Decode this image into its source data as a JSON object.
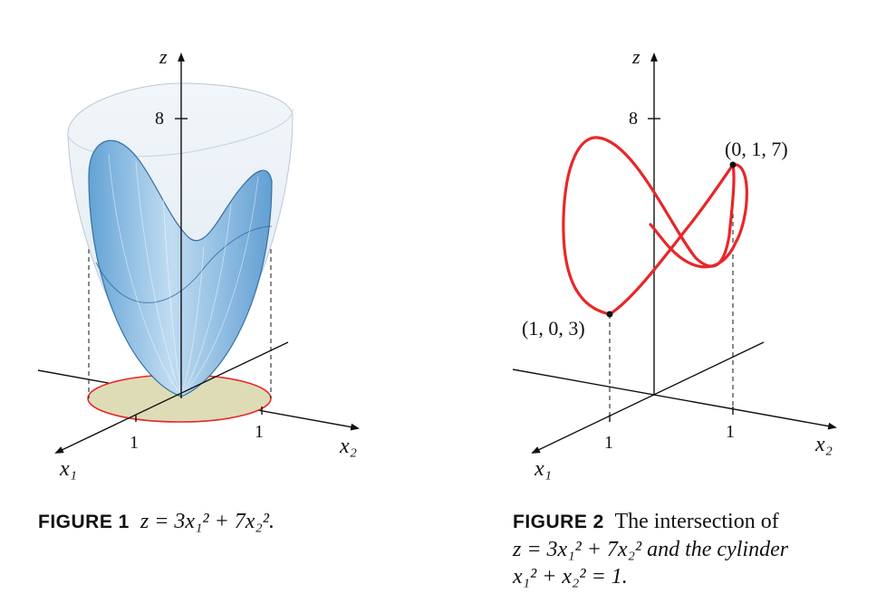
{
  "figure1": {
    "label": "FIGURE 1",
    "caption": "z = 3x₁² + 7x₂².",
    "axis_z": "z",
    "axis_x1": "x₁",
    "axis_x2": "x₂",
    "tick_z": "8",
    "tick_x1": "1",
    "tick_x2": "1"
  },
  "figure2": {
    "label": "FIGURE 2",
    "caption_line1": "The intersection of",
    "caption_line2": "z = 3x₁² + 7x₂² and the cylinder",
    "caption_line3": "x₁² + x₂² = 1.",
    "axis_z": "z",
    "axis_x1": "x₁",
    "axis_x2": "x₂",
    "tick_z": "8",
    "tick_x1": "1",
    "tick_x2": "1",
    "point_a": "(0, 1, 7)",
    "point_b": "(1, 0, 3)"
  },
  "colors": {
    "curve": "#e8262a",
    "surface": "#8fc3ea",
    "disk": "#dcdcb4"
  }
}
